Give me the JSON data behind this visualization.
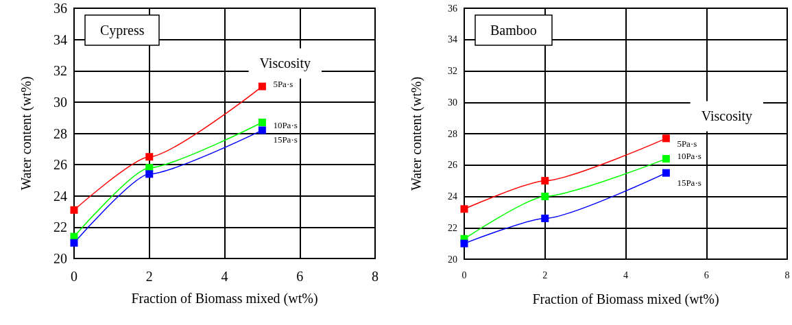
{
  "chart_data": [
    {
      "type": "line",
      "title": "Cypress",
      "xlabel": "Fraction of Biomass mixed (wt%)",
      "ylabel": "Water content (wt%)",
      "legend_title": "Viscosity",
      "x": [
        0,
        2,
        5
      ],
      "xlim": [
        0,
        8
      ],
      "xticks": [
        0,
        2,
        4,
        6,
        8
      ],
      "ylim": [
        20,
        36
      ],
      "yticks": [
        20,
        22,
        24,
        26,
        28,
        30,
        32,
        34,
        36
      ],
      "grid": true,
      "marker": "square",
      "line_style": "solid",
      "series": [
        {
          "name": "5Pa·s",
          "color": "#ff0000",
          "values": [
            23.1,
            26.5,
            31.0
          ]
        },
        {
          "name": "10Pa·s",
          "color": "#00ff00",
          "values": [
            21.4,
            25.8,
            28.7
          ]
        },
        {
          "name": "15Pa·s",
          "color": "#0000ff",
          "values": [
            21.0,
            25.4,
            28.2
          ]
        }
      ]
    },
    {
      "type": "line",
      "title": "Bamboo",
      "xlabel": "Fraction of Biomass mixed (wt%)",
      "ylabel": "Water content (wt%)",
      "legend_title": "Viscosity",
      "x": [
        0,
        2,
        5
      ],
      "xlim": [
        0,
        8
      ],
      "xticks": [
        0,
        2,
        4,
        6,
        8
      ],
      "ylim": [
        20,
        36
      ],
      "yticks": [
        20,
        22,
        24,
        26,
        28,
        30,
        32,
        34,
        36
      ],
      "grid": true,
      "marker": "square",
      "line_style": "solid",
      "series": [
        {
          "name": "5Pa·s",
          "color": "#ff0000",
          "values": [
            23.2,
            25.0,
            27.7
          ]
        },
        {
          "name": "10Pa·s",
          "color": "#00ff00",
          "values": [
            21.3,
            24.0,
            26.4
          ]
        },
        {
          "name": "15Pa·s",
          "color": "#0000ff",
          "values": [
            21.0,
            22.6,
            25.5
          ]
        }
      ]
    }
  ]
}
